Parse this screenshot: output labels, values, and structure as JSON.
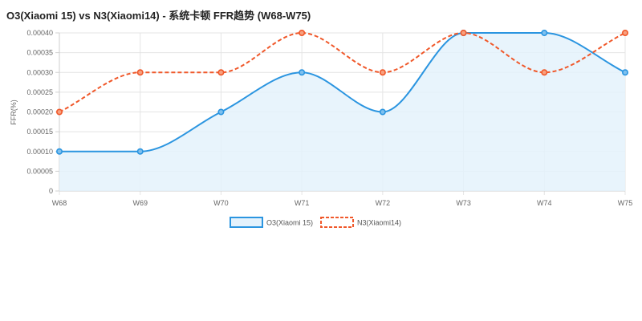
{
  "chart_data": {
    "type": "line",
    "title": "O3(Xiaomi 15) vs N3(Xiaomi14) - 系统卡顿 FFR趋势 (W68-W75)",
    "ylabel": "FFR(%)",
    "xlabel": "",
    "categories": [
      "W68",
      "W69",
      "W70",
      "W71",
      "W72",
      "W73",
      "W74",
      "W75"
    ],
    "ylim": [
      0,
      0.0004
    ],
    "yticks": [
      "0",
      "0.00005",
      "0.00010",
      "0.00015",
      "0.00020",
      "0.00025",
      "0.00030",
      "0.00035",
      "0.00040"
    ],
    "grid": true,
    "legend_position": "bottom",
    "series": [
      {
        "name": "O3(Xiaomi 15)",
        "values": [
          0.0001,
          0.0001,
          0.0002,
          0.0003,
          0.0002,
          0.0004,
          0.0004,
          0.0003
        ],
        "color": "#2b95e0",
        "fill": "#e4f2fc",
        "style": "solid"
      },
      {
        "name": "N3(Xiaomi14)",
        "values": [
          0.0002,
          0.0003,
          0.0003,
          0.0004,
          0.0003,
          0.0004,
          0.0003,
          0.0004
        ],
        "color": "#f0582a",
        "style": "dashed"
      }
    ]
  }
}
